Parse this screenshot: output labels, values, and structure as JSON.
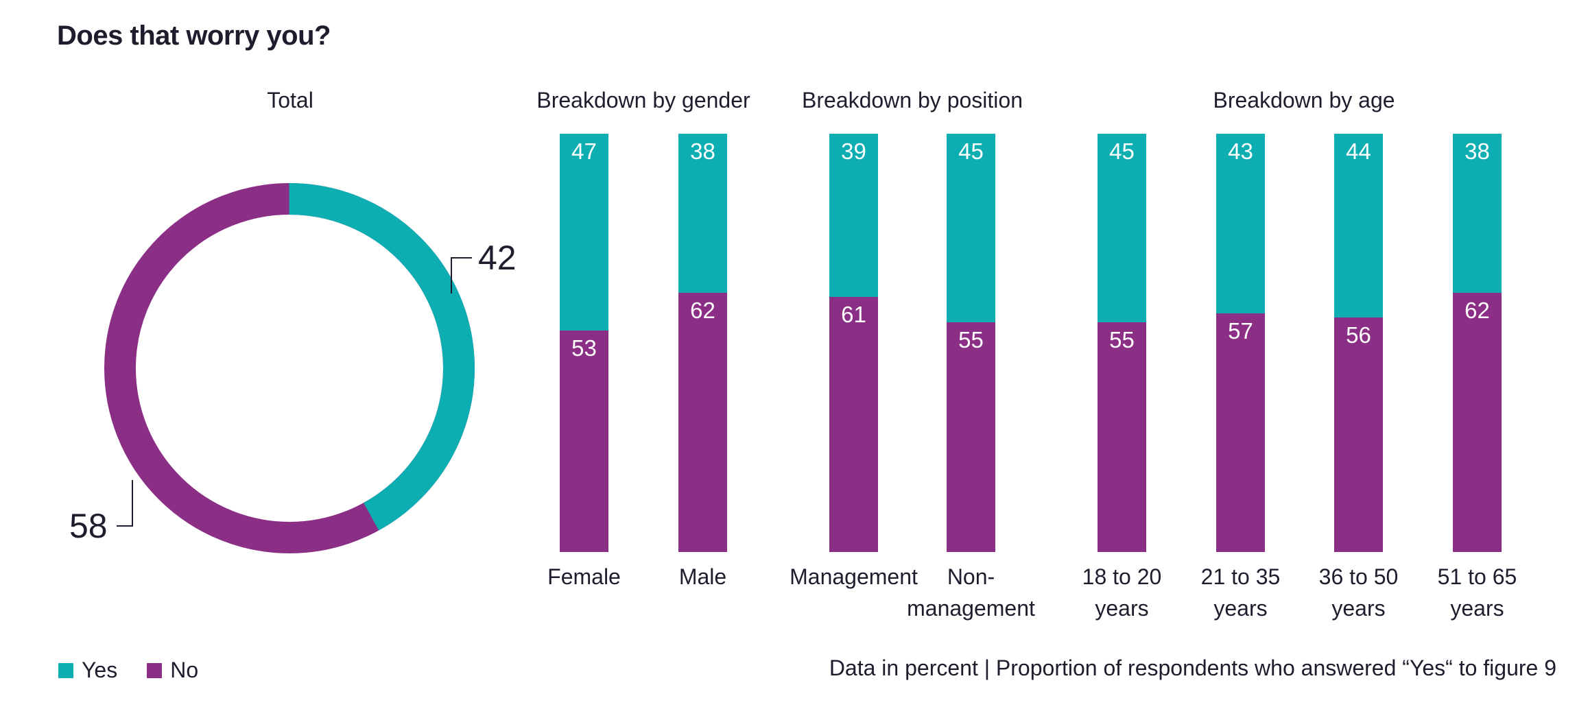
{
  "title": "Does that worry you?",
  "colors": {
    "yes": "#0CAEB2",
    "no": "#8B2E85",
    "text": "#1D1D2E",
    "background": "#FFFFFF"
  },
  "legend": {
    "yes_label": "Yes",
    "no_label": "No"
  },
  "footer": "Data in percent | Proportion of respondents who answered “Yes“ to figure 9",
  "chart_data": {
    "donut": {
      "type": "pie",
      "style": "donut",
      "title": "Total",
      "labels": [
        "Yes",
        "No"
      ],
      "values": [
        42,
        58
      ],
      "colors": [
        "#0CAEB2",
        "#8B2E85"
      ],
      "start_angle": "top",
      "direction": "clockwise"
    },
    "stacked_bars": {
      "type": "bar",
      "subtype": "stacked",
      "unit": "percent",
      "ylim": [
        0,
        100
      ],
      "grid": false,
      "series_names": [
        "Yes",
        "No"
      ],
      "groups": [
        {
          "title": "Breakdown by gender",
          "bars": [
            {
              "label": "Female",
              "label_line2": "",
              "yes": 47,
              "no": 53
            },
            {
              "label": "Male",
              "label_line2": "",
              "yes": 38,
              "no": 62
            }
          ]
        },
        {
          "title": "Breakdown by position",
          "bars": [
            {
              "label": "Management",
              "label_line2": "",
              "yes": 39,
              "no": 61
            },
            {
              "label": "Non-",
              "label_line2": "management",
              "yes": 45,
              "no": 55
            }
          ]
        },
        {
          "title": "Breakdown by age",
          "bars": [
            {
              "label": "18 to 20",
              "label_line2": "years",
              "yes": 45,
              "no": 55
            },
            {
              "label": "21 to 35",
              "label_line2": "years",
              "yes": 43,
              "no": 57
            },
            {
              "label": "36 to 50",
              "label_line2": "years",
              "yes": 44,
              "no": 56
            },
            {
              "label": "51 to 65",
              "label_line2": "years",
              "yes": 38,
              "no": 62
            }
          ]
        }
      ]
    }
  }
}
